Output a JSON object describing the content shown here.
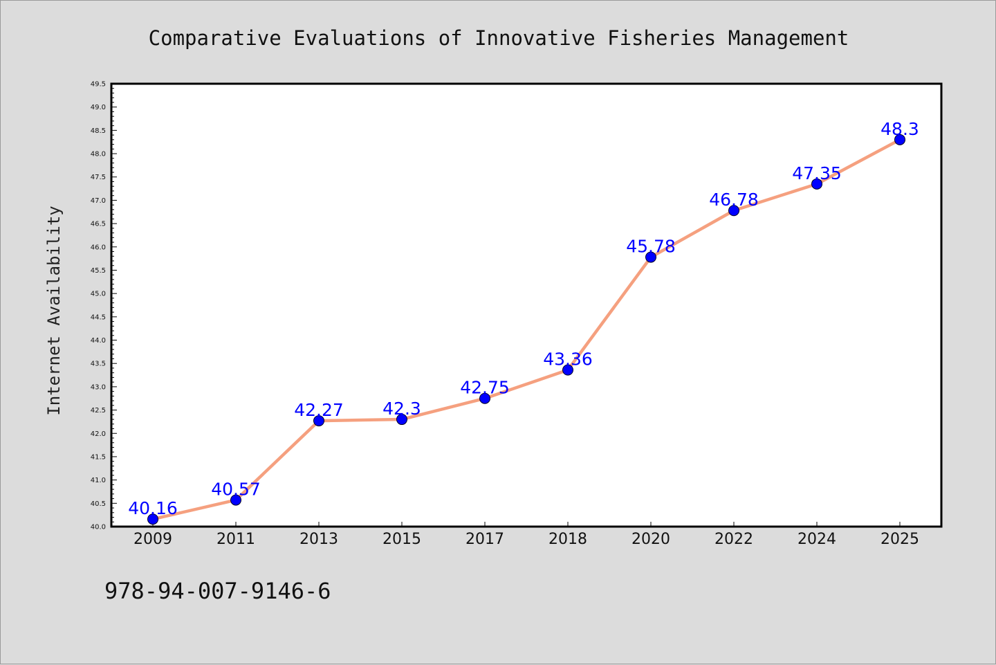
{
  "colors": {
    "background": "#dcdcdc",
    "plot_background": "#ffffff",
    "axes": "#000000",
    "line": "#f5a07f",
    "marker": "#0000ff",
    "data_label": "#0000ff"
  },
  "footer": {
    "code": "978-94-007-9146-6"
  },
  "chart_data": {
    "type": "line",
    "title": "Comparative Evaluations of Innovative Fisheries Management",
    "xlabel": "",
    "ylabel": "Internet Availability",
    "categories": [
      "2009",
      "2011",
      "2013",
      "2015",
      "2017",
      "2018",
      "2020",
      "2022",
      "2024",
      "2025"
    ],
    "series": [
      {
        "values": [
          40.16,
          40.57,
          42.27,
          42.3,
          42.75,
          43.36,
          45.78,
          46.78,
          47.35,
          48.3
        ]
      }
    ],
    "data_labels": [
      "40.16",
      "40.57",
      "42.27",
      "42.3",
      "42.75",
      "43.36",
      "45.78",
      "46.78",
      "47.35",
      "48.3"
    ],
    "ylim": [
      40.0,
      49.5
    ],
    "yticks": [
      "40.0",
      "40.5",
      "41.0",
      "41.5",
      "42.0",
      "42.5",
      "43.0",
      "43.5",
      "44.0",
      "44.5",
      "45.0",
      "45.5",
      "46.0",
      "46.5",
      "47.0",
      "47.5",
      "48.0",
      "48.5",
      "49.0",
      "49.5"
    ],
    "grid": false,
    "legend": "none",
    "markers": "filled circles"
  }
}
